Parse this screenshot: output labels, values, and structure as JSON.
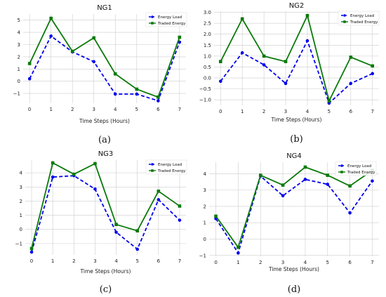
{
  "chart_data": [
    {
      "type": "line",
      "title": "NG1",
      "xlabel": "Time Steps (Hours)",
      "ylabel": "",
      "caption": "(a)",
      "x": [
        0,
        1,
        2,
        3,
        4,
        5,
        6,
        7
      ],
      "xlim": [
        -0.3,
        7.3
      ],
      "ylim": [
        -1.8,
        5.5
      ],
      "yticks": [
        -1,
        0,
        1,
        2,
        3,
        4,
        5
      ],
      "yticklabels": [
        "−1",
        "0",
        "1",
        "2",
        "3",
        "4",
        "5"
      ],
      "grid": true,
      "legend": "top-right",
      "series": [
        {
          "name": "Energy Load",
          "color": "#0000ee",
          "style": "dashed",
          "marker": "circle",
          "values": [
            0.2,
            3.7,
            2.4,
            1.6,
            -1.05,
            -1.05,
            -1.6,
            3.2
          ]
        },
        {
          "name": "Traded Energy",
          "color": "#0a7a0a",
          "style": "solid",
          "marker": "square",
          "values": [
            1.45,
            5.15,
            2.45,
            3.55,
            0.6,
            -0.65,
            -1.3,
            3.6
          ]
        }
      ]
    },
    {
      "type": "line",
      "title": "NG2",
      "xlabel": "Time Steps (Hours)",
      "ylabel": "",
      "caption": "(b)",
      "x": [
        0,
        1,
        2,
        3,
        4,
        5,
        6,
        7
      ],
      "xlim": [
        -0.3,
        7.3
      ],
      "ylim": [
        -1.25,
        3.05
      ],
      "yticks": [
        -1.0,
        -0.5,
        0.0,
        0.5,
        1.0,
        1.5,
        2.0,
        2.5,
        3.0
      ],
      "yticklabels": [
        "−1.0",
        "−0.5",
        "0.0",
        "0.5",
        "1.0",
        "1.5",
        "2.0",
        "2.5",
        "3.0"
      ],
      "grid": true,
      "legend": "top-right",
      "series": [
        {
          "name": "Energy Load",
          "color": "#0000ee",
          "style": "dashed",
          "marker": "circle",
          "values": [
            -0.15,
            1.15,
            0.6,
            -0.25,
            1.7,
            -1.15,
            -0.25,
            0.2
          ]
        },
        {
          "name": "Traded Energy",
          "color": "#0a7a0a",
          "style": "solid",
          "marker": "square",
          "values": [
            0.75,
            2.7,
            1.0,
            0.75,
            2.85,
            -1.05,
            0.95,
            0.55
          ]
        }
      ]
    },
    {
      "type": "line",
      "title": "NG3",
      "xlabel": "Time Steps (Hours)",
      "ylabel": "",
      "caption": "(c)",
      "x": [
        0,
        1,
        2,
        3,
        4,
        5,
        6,
        7
      ],
      "xlim": [
        -0.3,
        7.3
      ],
      "ylim": [
        -1.8,
        4.9
      ],
      "yticks": [
        -1,
        0,
        1,
        2,
        3,
        4
      ],
      "yticklabels": [
        "−1",
        "0",
        "1",
        "2",
        "3",
        "4"
      ],
      "grid": true,
      "legend": "top-right",
      "series": [
        {
          "name": "Energy Load",
          "color": "#0000ee",
          "style": "dashed",
          "marker": "circle",
          "values": [
            -1.6,
            3.7,
            3.8,
            2.85,
            -0.2,
            -1.4,
            2.1,
            0.65
          ]
        },
        {
          "name": "Traded Energy",
          "color": "#0a7a0a",
          "style": "solid",
          "marker": "square",
          "values": [
            -1.35,
            4.7,
            3.9,
            4.65,
            0.35,
            -0.1,
            2.7,
            1.65
          ]
        }
      ]
    },
    {
      "type": "line",
      "title": "NG4",
      "xlabel": "Time Steps (Hours)",
      "ylabel": "",
      "caption": "(d)",
      "x": [
        0,
        1,
        2,
        3,
        4,
        5,
        6,
        7
      ],
      "xlim": [
        -0.3,
        7.3
      ],
      "ylim": [
        -1.05,
        4.7
      ],
      "yticks": [
        -1,
        0,
        1,
        2,
        3,
        4
      ],
      "yticklabels": [
        "−1",
        "0",
        "1",
        "2",
        "3",
        "4"
      ],
      "grid": true,
      "legend": "top-right",
      "series": [
        {
          "name": "Energy Load",
          "color": "#0000ee",
          "style": "dashed",
          "marker": "circle",
          "values": [
            1.25,
            -0.85,
            3.85,
            2.65,
            3.65,
            3.35,
            1.6,
            3.55
          ]
        },
        {
          "name": "Traded Energy",
          "color": "#0a7a0a",
          "style": "solid",
          "marker": "square",
          "values": [
            1.4,
            -0.5,
            3.9,
            3.3,
            4.4,
            3.9,
            3.25,
            4.2
          ]
        }
      ]
    }
  ]
}
